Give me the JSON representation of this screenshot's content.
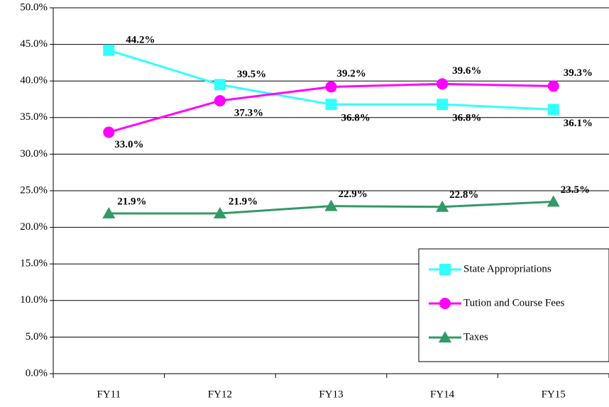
{
  "chart_data": {
    "type": "line",
    "categories": [
      "FY11",
      "FY12",
      "FY13",
      "FY14",
      "FY15"
    ],
    "series": [
      {
        "name": "State Appropriations",
        "color": "#33ffff",
        "marker": "square",
        "values": [
          44.2,
          39.5,
          36.8,
          36.8,
          36.1
        ],
        "value_labels": [
          "44.2%",
          "39.5%",
          "36.8%",
          "36.8%",
          "36.1%"
        ]
      },
      {
        "name": "Tution and Course Fees",
        "color": "#ff00ff",
        "marker": "circle",
        "values": [
          33.0,
          37.3,
          39.2,
          39.6,
          39.3
        ],
        "value_labels": [
          "33.0%",
          "37.3%",
          "39.2%",
          "39.6%",
          "39.3%"
        ]
      },
      {
        "name": "Taxes",
        "color": "#339966",
        "marker": "triangle",
        "values": [
          21.9,
          21.9,
          22.9,
          22.8,
          23.5
        ],
        "value_labels": [
          "21.9%",
          "21.9%",
          "22.9%",
          "22.8%",
          "23.5%"
        ]
      }
    ],
    "ylim": [
      0,
      50
    ],
    "yticks": [
      {
        "value": 0,
        "label": "0.0%"
      },
      {
        "value": 5,
        "label": "5.0%"
      },
      {
        "value": 10,
        "label": "10.0%"
      },
      {
        "value": 15,
        "label": "15.0%"
      },
      {
        "value": 20,
        "label": "20.0%"
      },
      {
        "value": 25,
        "label": "25.0%"
      },
      {
        "value": 30,
        "label": "30.0%"
      },
      {
        "value": 35,
        "label": "35.0%"
      },
      {
        "value": 40,
        "label": "40.0%"
      },
      {
        "value": 45,
        "label": "45.0%"
      },
      {
        "value": 50,
        "label": "50.0%"
      }
    ],
    "grid": true,
    "legend": "lower right"
  }
}
